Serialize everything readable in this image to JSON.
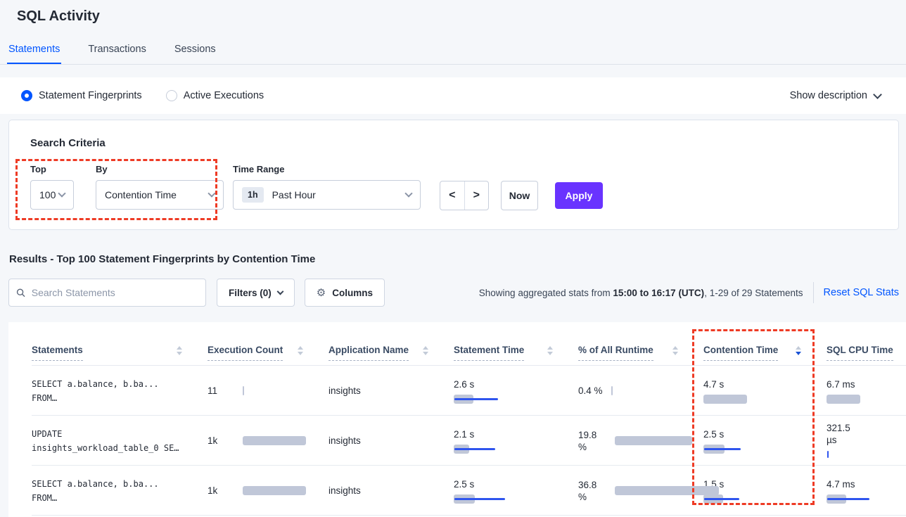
{
  "colors": {
    "accent_blue": "#0055ff",
    "apply_purple": "#6933ff",
    "bar_gray": "#c0c7d8",
    "bar_blue": "#2f55ee",
    "annotation_red": "#ee3b25",
    "page_background": "#f5f7fa"
  },
  "page": {
    "title": "SQL Activity"
  },
  "tabs": [
    {
      "label": "Statements",
      "active": true
    },
    {
      "label": "Transactions",
      "active": false
    },
    {
      "label": "Sessions",
      "active": false
    }
  ],
  "view_toggle": {
    "options": [
      {
        "label": "Statement Fingerprints",
        "selected": true
      },
      {
        "label": "Active Executions",
        "selected": false
      }
    ],
    "show_description": "Show description"
  },
  "search_criteria": {
    "title": "Search Criteria",
    "top": {
      "label": "Top",
      "value": "100"
    },
    "by": {
      "label": "By",
      "value": "Contention Time"
    },
    "time_range": {
      "label": "Time Range",
      "badge": "1h",
      "value": "Past Hour"
    },
    "prev_label": "<",
    "next_label": ">",
    "now_label": "Now",
    "apply_label": "Apply"
  },
  "results": {
    "title": "Results - Top 100 Statement Fingerprints by Contention Time",
    "search_placeholder": "Search Statements",
    "filters_label": "Filters (0)",
    "columns_label": "Columns",
    "stats_prefix": "Showing aggregated stats from ",
    "stats_bold": "15:00 to 16:17 (UTC)",
    "stats_suffix": ", 1-29 of 29 Statements",
    "reset_link": "Reset SQL Stats"
  },
  "table": {
    "columns": [
      {
        "label": "Statements",
        "sort": "none"
      },
      {
        "label": "Execution Count",
        "sort": "none"
      },
      {
        "label": "Application Name",
        "sort": "none"
      },
      {
        "label": "Statement Time",
        "sort": "none"
      },
      {
        "label": "% of All Runtime",
        "sort": "none"
      },
      {
        "label": "Contention Time",
        "sort": "desc"
      },
      {
        "label": "SQL CPU Time",
        "sort": "none"
      }
    ],
    "rows": [
      {
        "statement_line1": "SELECT a.balance, b.ba...",
        "statement_line2": "FROM…",
        "execution_count": {
          "value": "11",
          "g": 2,
          "b": 0
        },
        "application": "insights",
        "statement_time": {
          "value": "2.6 s",
          "g": 28,
          "b": 62
        },
        "pct_runtime": {
          "value": "0.4 %",
          "g": 2,
          "b": 0
        },
        "contention_time": {
          "value": "4.7 s",
          "g": 62,
          "b": 0
        },
        "sql_cpu_time": {
          "value": "6.7 ms",
          "g": 48,
          "b": 0
        }
      },
      {
        "statement_line1": "UPDATE",
        "statement_line2": "insights_workload_table_0 SE…",
        "execution_count": {
          "value": "1k",
          "g": 90,
          "b": 0
        },
        "application": "insights",
        "statement_time": {
          "value": "2.1 s",
          "g": 22,
          "b": 58
        },
        "pct_runtime": {
          "value": "19.8 %",
          "g": 110,
          "b": 0
        },
        "contention_time": {
          "value": "2.5 s",
          "g": 30,
          "b": 52
        },
        "sql_cpu_time": {
          "value": "321.5 µs",
          "g": 0,
          "b": 2
        }
      },
      {
        "statement_line1": "SELECT a.balance, b.ba...",
        "statement_line2": "FROM…",
        "execution_count": {
          "value": "1k",
          "g": 90,
          "b": 0
        },
        "application": "insights",
        "statement_time": {
          "value": "2.5 s",
          "g": 30,
          "b": 72
        },
        "pct_runtime": {
          "value": "36.8 %",
          "g": 148,
          "b": 0
        },
        "contention_time": {
          "value": "1.5 s",
          "g": 28,
          "b": 50
        },
        "sql_cpu_time": {
          "value": "4.7 ms",
          "g": 28,
          "b": 60
        }
      }
    ]
  },
  "annotations": [
    {
      "name": "highlight-top-by-selectors"
    },
    {
      "name": "highlight-contention-time-column"
    }
  ]
}
